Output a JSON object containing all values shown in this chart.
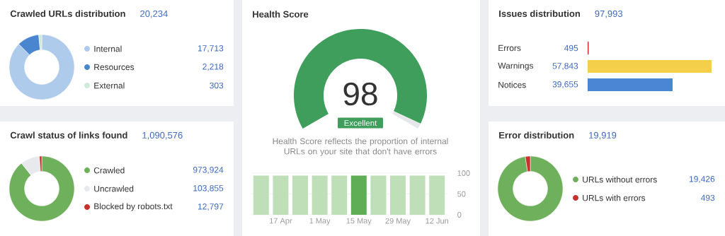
{
  "chart_data": [
    {
      "type": "donut",
      "title": "Crawled URLs distribution",
      "subtitle": "20,234",
      "categories": [
        "Internal",
        "Resources",
        "External"
      ],
      "values": [
        17713,
        2218,
        303
      ],
      "colors": [
        "#aecbec",
        "#4a86d0",
        "#cfe9d9"
      ],
      "value_labels": [
        "17,713",
        "2,218",
        "303"
      ],
      "legend": "right"
    },
    {
      "type": "donut",
      "title": "Health Score",
      "categories": [
        null,
        null
      ],
      "values": [
        98,
        2
      ],
      "colors": [
        "#3f9e5c",
        "#e6e7ea"
      ],
      "value_labels": [
        "98",
        null
      ],
      "annotations": [
        "Excellent",
        "Health Score reflects the proportion of internal URLs on your site that don't have errors"
      ]
    },
    {
      "type": "bar",
      "categories": [
        null,
        "17 Apr",
        null,
        "1 May",
        null,
        "15 May",
        null,
        "29 May",
        null,
        "12 Jun"
      ],
      "values": [
        94,
        94,
        94,
        94,
        94,
        94,
        94,
        94,
        94,
        94
      ],
      "colors": [
        "#bfdfb8",
        "#bfdfb8",
        "#bfdfb8",
        "#bfdfb8",
        "#bfdfb8",
        "#5fae55",
        "#bfdfb8",
        "#bfdfb8",
        "#bfdfb8",
        "#bfdfb8"
      ],
      "ylim": [
        0,
        100
      ],
      "yticks": [
        0,
        50,
        100
      ],
      "grid": "y"
    },
    {
      "type": "bar",
      "orientation": "horizontal",
      "title": "Issues distribution",
      "subtitle": "97,993",
      "categories": [
        "Errors",
        "Warnings",
        "Notices"
      ],
      "values": [
        495,
        57843,
        39655
      ],
      "colors": [
        "#d0342c",
        "#f4cf4a",
        "#4a86d4"
      ],
      "value_labels": [
        "495",
        "57,843",
        "39,655"
      ]
    },
    {
      "type": "donut",
      "title": "Crawl status of links found",
      "subtitle": "1,090,576",
      "categories": [
        "Crawled",
        "Uncrawled",
        "Blocked by robots.txt"
      ],
      "values": [
        973924,
        103855,
        12797
      ],
      "colors": [
        "#6fb05c",
        "#e8e9ec",
        "#c9302c"
      ],
      "value_labels": [
        "973,924",
        "103,855",
        "12,797"
      ],
      "legend": "right"
    },
    {
      "type": "donut",
      "title": "Error distribution",
      "subtitle": "19,919",
      "categories": [
        "URLs without errors",
        "URLs with errors"
      ],
      "values": [
        19426,
        493
      ],
      "colors": [
        "#6fb05c",
        "#c9302c"
      ],
      "value_labels": [
        "19,426",
        "493"
      ],
      "legend": "right"
    }
  ]
}
